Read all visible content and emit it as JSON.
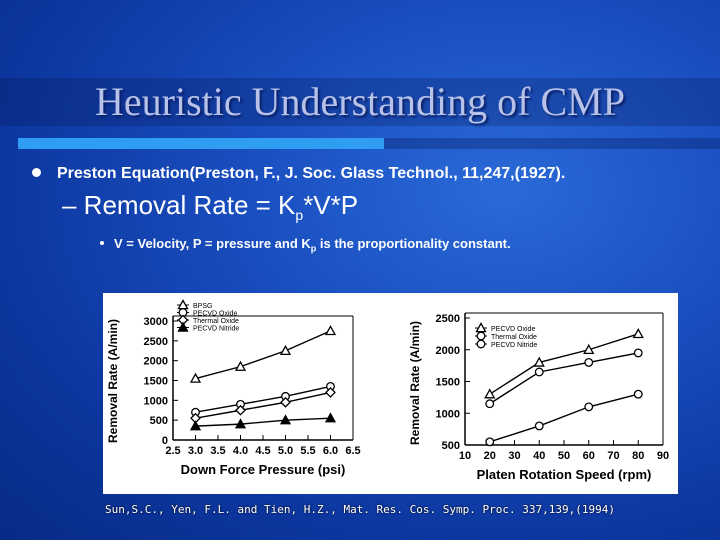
{
  "title": "Heuristic Understanding of CMP",
  "bullets": {
    "b1": "Preston Equation(Preston, F., J. Soc. Glass Technol., 11,247,(1927).",
    "b2_prefix": "– Removal Rate = K",
    "b2_sub": "p",
    "b2_suffix": "*V*P",
    "b3_prefix": "V = Velocity, P = pressure and K",
    "b3_sub": "p",
    "b3_suffix": " is the proportionality constant."
  },
  "citation": "Sun,S.C., Yen, F.L. and Tien, H.Z., Mat. Res. Cos. Symp. Proc. 337,139,(1994)",
  "colors": {
    "accent": "#2f9df2",
    "background": "#1a4fc0"
  },
  "chart_data": [
    {
      "type": "line",
      "xlabel": "Down Force Pressure (psi)",
      "ylabel": "Removal Rate (A/min)",
      "xticks": [
        "2.5",
        "3.0",
        "3.5",
        "4.0",
        "4.5",
        "5.0",
        "5.5",
        "6.0",
        "6.5"
      ],
      "yticks": [
        "0",
        "500",
        "1000",
        "1500",
        "2000",
        "2500",
        "3000"
      ],
      "xlim": [
        2.5,
        6.5
      ],
      "ylim": [
        0,
        3000
      ],
      "legend": [
        "BPSG",
        "PECVD Oxide",
        "Thermal Oxide",
        "PECVD Nitride"
      ],
      "series": [
        {
          "name": "BPSG",
          "marker": "triangle-open",
          "x": [
            3.0,
            4.0,
            5.0,
            6.0
          ],
          "y": [
            1550,
            1850,
            2250,
            2750
          ]
        },
        {
          "name": "PECVD Oxide",
          "marker": "circle-open",
          "x": [
            3.0,
            4.0,
            5.0,
            6.0
          ],
          "y": [
            700,
            900,
            1100,
            1350
          ]
        },
        {
          "name": "Thermal Oxide",
          "marker": "diamond-open",
          "x": [
            3.0,
            4.0,
            5.0,
            6.0
          ],
          "y": [
            550,
            750,
            950,
            1200
          ]
        },
        {
          "name": "PECVD Nitride",
          "marker": "triangle-filled",
          "x": [
            3.0,
            4.0,
            5.0,
            6.0
          ],
          "y": [
            350,
            400,
            500,
            550
          ]
        }
      ]
    },
    {
      "type": "line",
      "xlabel": "Platen Rotation Speed (rpm)",
      "ylabel": "Removal Rate (A/min)",
      "xticks": [
        "10",
        "20",
        "30",
        "40",
        "50",
        "60",
        "70",
        "80",
        "90"
      ],
      "yticks": [
        "500",
        "1000",
        "1500",
        "2000",
        "2500"
      ],
      "xlim": [
        10,
        90
      ],
      "ylim": [
        500,
        2500
      ],
      "legend": [
        "PECVD Oxide",
        "Thermal Oxide",
        "PECVD Nitride"
      ],
      "series": [
        {
          "name": "PECVD Oxide",
          "marker": "triangle-open",
          "x": [
            20,
            40,
            60,
            80
          ],
          "y": [
            1300,
            1800,
            2000,
            2250
          ]
        },
        {
          "name": "Thermal Oxide",
          "marker": "circle-open",
          "x": [
            20,
            40,
            60,
            80
          ],
          "y": [
            1150,
            1650,
            1800,
            1950
          ]
        },
        {
          "name": "PECVD Nitride",
          "marker": "circle-open",
          "x": [
            20,
            40,
            60,
            80
          ],
          "y": [
            550,
            800,
            1100,
            1300
          ]
        }
      ]
    }
  ]
}
